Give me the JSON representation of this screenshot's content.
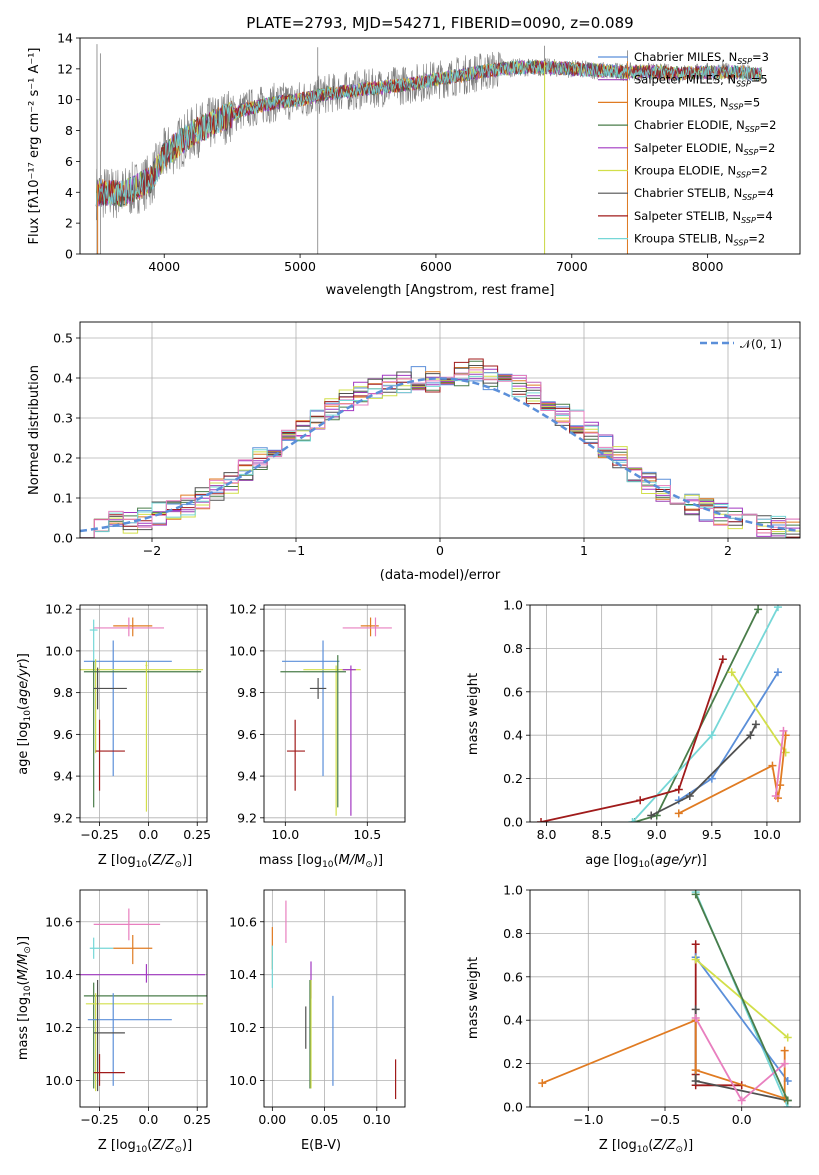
{
  "chart_data": [
    {
      "type": "line",
      "title": "PLATE=2793, MJD=54271, FIBERID=0090, z=0.089",
      "xlabel": "wavelength [Angstrom, rest frame]",
      "ylabel": "Flux [fλ10⁻¹⁷ erg cm⁻² s⁻¹ A⁻¹]",
      "xlim": [
        3380,
        8680
      ],
      "ylim": [
        0,
        14
      ],
      "xticks": [
        4000,
        5000,
        6000,
        7000,
        8000
      ],
      "yticks": [
        0,
        2,
        4,
        6,
        8,
        10,
        12,
        14
      ],
      "legend_placement": "right",
      "spectrum_x": [
        3500,
        3700,
        3900,
        4000,
        4200,
        4400,
        4600,
        4800,
        5000,
        5200,
        5400,
        5600,
        5800,
        6000,
        6200,
        6400,
        6600,
        6800,
        7000,
        7200,
        7400,
        7600,
        7800,
        8000,
        8200,
        8400
      ],
      "spectrum_y": [
        4.0,
        3.9,
        4.8,
        6.4,
        7.8,
        8.7,
        9.4,
        9.8,
        10.0,
        10.4,
        10.6,
        10.8,
        11.0,
        11.3,
        11.6,
        11.9,
        12.1,
        12.1,
        12.0,
        11.9,
        11.8,
        11.8,
        11.7,
        11.8,
        11.8,
        11.6
      ],
      "series": [
        {
          "name": "Chabrier MILES, N_SSP=3",
          "color": "#5b8fd9"
        },
        {
          "name": "Salpeter MILES, N_SSP=5",
          "color": "#9a3fb3"
        },
        {
          "name": "Kroupa MILES, N_SSP=5",
          "color": "#e07b22"
        },
        {
          "name": "Chabrier ELODIE, N_SSP=2",
          "color": "#4a7d4a"
        },
        {
          "name": "Salpeter ELODIE, N_SSP=2",
          "color": "#a238c2"
        },
        {
          "name": "Kroupa ELODIE, N_SSP=2",
          "color": "#d2df4a"
        },
        {
          "name": "Chabrier STELIB, N_SSP=4",
          "color": "#505050"
        },
        {
          "name": "Salpeter STELIB, N_SSP=4",
          "color": "#a01b1b"
        },
        {
          "name": "Kroupa STELIB, N_SSP=2",
          "color": "#76d7d7"
        }
      ],
      "legend_labels": [
        {
          "pre": "Chabrier MILES, N",
          "sub": "SSP",
          "post": "=3"
        },
        {
          "pre": "Salpeter MILES, N",
          "sub": "SSP",
          "post": "=5"
        },
        {
          "pre": "Kroupa MILES, N",
          "sub": "SSP",
          "post": "=5"
        },
        {
          "pre": "Chabrier ELODIE, N",
          "sub": "SSP",
          "post": "=2"
        },
        {
          "pre": "Salpeter ELODIE, N",
          "sub": "SSP",
          "post": "=2"
        },
        {
          "pre": "Kroupa ELODIE, N",
          "sub": "SSP",
          "post": "=2"
        },
        {
          "pre": "Chabrier STELIB, N",
          "sub": "SSP",
          "post": "=4"
        },
        {
          "pre": "Salpeter STELIB, N",
          "sub": "SSP",
          "post": "=4"
        },
        {
          "pre": "Kroupa STELIB, N",
          "sub": "SSP",
          "post": "=2"
        }
      ]
    },
    {
      "type": "bar",
      "title": "",
      "xlabel": "(data-model)/error",
      "ylabel": "Normed distribution",
      "xlim": [
        -2.5,
        2.5
      ],
      "ylim": [
        0,
        0.54
      ],
      "xticks": [
        -2,
        -1,
        0,
        1,
        2
      ],
      "yticks": [
        0.0,
        0.1,
        0.2,
        0.3,
        0.4,
        0.5
      ],
      "grid": true,
      "legend": "𝒩(0, 1)",
      "legend_placement": "top-right",
      "bin_width": 0.1,
      "bins_start": -2.5,
      "histogram_values": [
        0.03,
        0.03,
        0.04,
        0.04,
        0.05,
        0.06,
        0.07,
        0.08,
        0.1,
        0.12,
        0.14,
        0.17,
        0.2,
        0.22,
        0.25,
        0.27,
        0.3,
        0.32,
        0.34,
        0.36,
        0.37,
        0.38,
        0.39,
        0.4,
        0.39,
        0.4,
        0.41,
        0.42,
        0.4,
        0.39,
        0.38,
        0.36,
        0.34,
        0.31,
        0.29,
        0.26,
        0.23,
        0.2,
        0.17,
        0.14,
        0.12,
        0.1,
        0.08,
        0.07,
        0.06,
        0.05,
        0.04,
        0.03,
        0.03,
        0.02
      ],
      "gaussian": {
        "mean": 0,
        "sigma": 1
      }
    },
    {
      "type": "scatter",
      "xlabel": "Z [log10(Z/Z⊙)]",
      "ylabel": "age  [log10(age/yr)]",
      "xlim": [
        -0.35,
        0.3
      ],
      "ylim": [
        9.18,
        10.22
      ],
      "xticks": [
        -0.25,
        0.0,
        0.25
      ],
      "yticks": [
        9.2,
        9.4,
        9.6,
        9.8,
        10.0,
        10.2
      ],
      "points": [
        {
          "x": -0.08,
          "y": 10.12,
          "xerr": [
            0.1,
            0.1
          ],
          "yerr": [
            0.05,
            0.04
          ],
          "color": "#e07b22"
        },
        {
          "x": -0.1,
          "y": 10.11,
          "xerr": [
            0.18,
            0.18
          ],
          "yerr": [
            0.04,
            0.05
          ],
          "color": "#e87fbf"
        },
        {
          "x": -0.28,
          "y": 10.1,
          "xerr": [
            0.02,
            0.02
          ],
          "yerr": [
            0.2,
            0.05
          ],
          "color": "#76d7d7"
        },
        {
          "x": -0.18,
          "y": 9.95,
          "xerr": [
            0.15,
            0.3
          ],
          "yerr": [
            0.55,
            0.1
          ],
          "color": "#5b8fd9"
        },
        {
          "x": -0.27,
          "y": 9.91,
          "xerr": [
            0.1,
            0.55
          ],
          "yerr": [
            0.4,
            0.05
          ],
          "color": "#d2df4a"
        },
        {
          "x": -0.28,
          "y": 9.9,
          "xerr": [
            0.05,
            0.55
          ],
          "yerr": [
            0.65,
            0.05
          ],
          "color": "#4a7d4a"
        },
        {
          "x": -0.26,
          "y": 9.82,
          "xerr": [
            0.02,
            0.15
          ],
          "yerr": [
            0.1,
            0.1
          ],
          "color": "#505050"
        },
        {
          "x": -0.25,
          "y": 9.52,
          "xerr": [
            0.02,
            0.13
          ],
          "yerr": [
            0.19,
            0.15
          ],
          "color": "#a01b1b"
        },
        {
          "x": -0.01,
          "y": 9.93,
          "xerr": [
            0.005,
            0.005
          ],
          "yerr": [
            0.7,
            0.02
          ],
          "color": "#d2df4a"
        }
      ]
    },
    {
      "type": "scatter",
      "xlabel": "mass [log10(M/M⊙)]",
      "ylabel": "",
      "xlim": [
        9.87,
        10.73
      ],
      "ylim": [
        9.18,
        10.22
      ],
      "xticks": [
        10.0,
        10.5
      ],
      "yticks": [
        9.2,
        9.4,
        9.6,
        9.8,
        10.0,
        10.2
      ],
      "points": [
        {
          "x": 10.52,
          "y": 10.12,
          "xerr": [
            0.06,
            0.05
          ],
          "yerr": [
            0.05,
            0.04
          ],
          "color": "#e07b22"
        },
        {
          "x": 10.55,
          "y": 10.11,
          "xerr": [
            0.2,
            0.1
          ],
          "yerr": [
            0.04,
            0.05
          ],
          "color": "#e87fbf"
        },
        {
          "x": 10.23,
          "y": 9.95,
          "xerr": [
            0.25,
            0.1
          ],
          "yerr": [
            0.55,
            0.1
          ],
          "color": "#5b8fd9"
        },
        {
          "x": 10.31,
          "y": 9.91,
          "xerr": [
            0.2,
            0.15
          ],
          "yerr": [
            0.7,
            0.02
          ],
          "color": "#d2df4a"
        },
        {
          "x": 10.32,
          "y": 9.9,
          "xerr": [
            0.35,
            0.05
          ],
          "yerr": [
            0.65,
            0.08
          ],
          "color": "#4a7d4a"
        },
        {
          "x": 10.4,
          "y": 9.91,
          "xerr": [
            0.05,
            0.03
          ],
          "yerr": [
            0.7,
            0.02
          ],
          "color": "#a238c2"
        },
        {
          "x": 10.2,
          "y": 9.82,
          "xerr": [
            0.05,
            0.05
          ],
          "yerr": [
            0.05,
            0.05
          ],
          "color": "#505050"
        },
        {
          "x": 10.06,
          "y": 9.52,
          "xerr": [
            0.05,
            0.06
          ],
          "yerr": [
            0.19,
            0.15
          ],
          "color": "#a01b1b"
        }
      ]
    },
    {
      "type": "line",
      "xlabel": "age  [log10(age/yr)]",
      "ylabel": "mass weight",
      "xlim": [
        7.85,
        10.3
      ],
      "ylim": [
        0,
        1.0
      ],
      "xticks": [
        8.0,
        8.5,
        9.0,
        9.5,
        10.0
      ],
      "yticks": [
        0.0,
        0.2,
        0.4,
        0.6,
        0.8,
        1.0
      ],
      "grid": true,
      "series": [
        {
          "color": "#4a7d4a",
          "x": [
            8.8,
            9.0,
            9.92
          ],
          "y": [
            0.0,
            0.03,
            0.98
          ]
        },
        {
          "color": "#76d7d7",
          "x": [
            8.78,
            9.5,
            10.1
          ],
          "y": [
            0.0,
            0.4,
            0.99
          ]
        },
        {
          "color": "#a01b1b",
          "x": [
            7.95,
            8.85,
            9.2,
            9.6
          ],
          "y": [
            0.0,
            0.1,
            0.15,
            0.75
          ]
        },
        {
          "color": "#5b8fd9",
          "x": [
            9.2,
            9.5,
            10.1
          ],
          "y": [
            0.1,
            0.2,
            0.69
          ]
        },
        {
          "color": "#505050",
          "x": [
            8.95,
            9.3,
            9.85,
            9.9
          ],
          "y": [
            0.03,
            0.12,
            0.4,
            0.45
          ]
        },
        {
          "color": "#d2df4a",
          "x": [
            9.68,
            10.17
          ],
          "y": [
            0.69,
            0.32
          ]
        },
        {
          "color": "#e07b22",
          "x": [
            9.2,
            10.05,
            10.1,
            10.12,
            10.17
          ],
          "y": [
            0.04,
            0.26,
            0.11,
            0.17,
            0.4
          ]
        },
        {
          "color": "#e87fbf",
          "x": [
            10.08,
            10.15
          ],
          "y": [
            0.12,
            0.42
          ]
        }
      ]
    },
    {
      "type": "scatter",
      "xlabel": "Z [log10(Z/Z⊙)]",
      "ylabel": "mass [log10(M/M⊙)]",
      "xlim": [
        -0.35,
        0.3
      ],
      "ylim": [
        9.9,
        10.72
      ],
      "xticks": [
        -0.25,
        0.0,
        0.25
      ],
      "yticks": [
        10.0,
        10.2,
        10.4,
        10.6
      ],
      "points": [
        {
          "x": -0.1,
          "y": 10.59,
          "xerr": [
            0.18,
            0.16
          ],
          "yerr": [
            0.06,
            0.06
          ],
          "color": "#e87fbf"
        },
        {
          "x": -0.08,
          "y": 10.5,
          "xerr": [
            0.1,
            0.1
          ],
          "yerr": [
            0.06,
            0.05
          ],
          "color": "#e07b22"
        },
        {
          "x": -0.28,
          "y": 10.5,
          "xerr": [
            0.02,
            0.1
          ],
          "yerr": [
            0.04,
            0.04
          ],
          "color": "#76d7d7"
        },
        {
          "x": -0.01,
          "y": 10.4,
          "xerr": [
            0.35,
            0.3
          ],
          "yerr": [
            0.03,
            0.04
          ],
          "color": "#a238c2"
        },
        {
          "x": -0.28,
          "y": 10.32,
          "xerr": [
            0.05,
            0.58
          ],
          "yerr": [
            0.35,
            0.05
          ],
          "color": "#4a7d4a"
        },
        {
          "x": -0.27,
          "y": 10.29,
          "xerr": [
            0.05,
            0.55
          ],
          "yerr": [
            0.33,
            0.04
          ],
          "color": "#d2df4a"
        },
        {
          "x": -0.18,
          "y": 10.23,
          "xerr": [
            0.13,
            0.3
          ],
          "yerr": [
            0.25,
            0.1
          ],
          "color": "#5b8fd9"
        },
        {
          "x": -0.26,
          "y": 10.18,
          "xerr": [
            0.02,
            0.14
          ],
          "yerr": [
            0.22,
            0.2
          ],
          "color": "#505050"
        },
        {
          "x": -0.25,
          "y": 10.03,
          "xerr": [
            0.03,
            0.13
          ],
          "yerr": [
            0.05,
            0.07
          ],
          "color": "#a01b1b"
        }
      ]
    },
    {
      "type": "scatter",
      "xlabel": "E(B-V)",
      "ylabel": "",
      "xlim": [
        -0.008,
        0.127
      ],
      "ylim": [
        9.9,
        10.72
      ],
      "xticks": [
        0.0,
        0.05,
        0.1
      ],
      "yticks": [
        10.0,
        10.2,
        10.4,
        10.6
      ],
      "points": [
        {
          "x": 0.0,
          "y": 10.5,
          "xerr": [
            0,
            0
          ],
          "yerr": [
            0.08,
            0.08
          ],
          "color": "#e07b22"
        },
        {
          "x": 0.013,
          "y": 10.6,
          "xerr": [
            0,
            0
          ],
          "yerr": [
            0.08,
            0.08
          ],
          "color": "#e87fbf"
        },
        {
          "x": 0.0,
          "y": 10.43,
          "xerr": [
            0,
            0
          ],
          "yerr": [
            0.08,
            0.08
          ],
          "color": "#76d7d7"
        },
        {
          "x": 0.032,
          "y": 10.2,
          "xerr": [
            0,
            0
          ],
          "yerr": [
            0.08,
            0.08
          ],
          "color": "#505050"
        },
        {
          "x": 0.037,
          "y": 10.38,
          "xerr": [
            0,
            0
          ],
          "yerr": [
            0.07,
            0.07
          ],
          "color": "#a238c2"
        },
        {
          "x": 0.036,
          "y": 10.15,
          "xerr": [
            0,
            0
          ],
          "yerr": [
            0.18,
            0.23
          ],
          "color": "#4a7d4a"
        },
        {
          "x": 0.037,
          "y": 10.15,
          "xerr": [
            0,
            0
          ],
          "yerr": [
            0.18,
            0.23
          ],
          "color": "#d2df4a"
        },
        {
          "x": 0.058,
          "y": 10.15,
          "xerr": [
            0,
            0
          ],
          "yerr": [
            0.17,
            0.17
          ],
          "color": "#5b8fd9"
        },
        {
          "x": 0.118,
          "y": 10.03,
          "xerr": [
            0,
            0
          ],
          "yerr": [
            0.1,
            0.05
          ],
          "color": "#a01b1b"
        }
      ]
    },
    {
      "type": "line",
      "xlabel": "Z [log10(Z/Z⊙)]",
      "ylabel": "mass weight",
      "xlim": [
        -1.38,
        0.38
      ],
      "ylim": [
        0,
        1.0
      ],
      "xticks": [
        -1.0,
        -0.5,
        0.0
      ],
      "yticks": [
        0.0,
        0.2,
        0.4,
        0.6,
        0.8,
        1.0
      ],
      "grid": true,
      "series": [
        {
          "color": "#76d7d7",
          "x": [
            -0.3,
            0.3
          ],
          "y": [
            0.99,
            0.0
          ]
        },
        {
          "color": "#a01b1b",
          "x": [
            -0.3,
            -0.3,
            -0.3,
            0.0
          ],
          "y": [
            0.75,
            0.15,
            0.1,
            0.1
          ]
        },
        {
          "color": "#5b8fd9",
          "x": [
            -0.3,
            0.3
          ],
          "y": [
            0.69,
            0.12
          ]
        },
        {
          "color": "#d2df4a",
          "x": [
            -0.3,
            0.3
          ],
          "y": [
            0.68,
            0.32
          ]
        },
        {
          "color": "#505050",
          "x": [
            -0.3,
            -0.3,
            0.3
          ],
          "y": [
            0.45,
            0.12,
            0.03
          ]
        },
        {
          "color": "#e07b22",
          "x": [
            -1.3,
            -0.3,
            -0.3,
            0.28,
            0.28
          ],
          "y": [
            0.11,
            0.4,
            0.17,
            0.04,
            0.26
          ]
        },
        {
          "color": "#e87fbf",
          "x": [
            -0.3,
            0.0,
            0.28
          ],
          "y": [
            0.41,
            0.03,
            0.2
          ]
        },
        {
          "color": "#4a7d4a",
          "x": [
            -0.3,
            0.3
          ],
          "y": [
            0.98,
            0.03
          ]
        }
      ]
    }
  ]
}
